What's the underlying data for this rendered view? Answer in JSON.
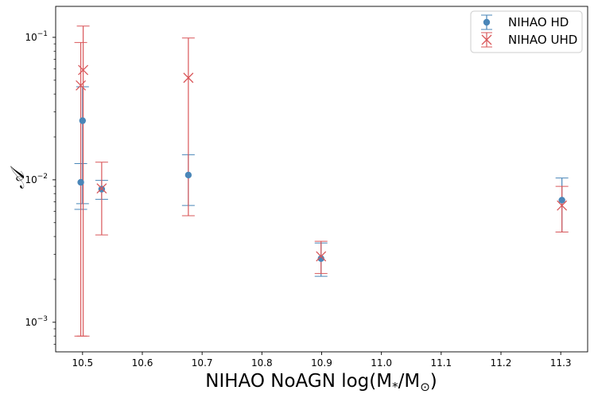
{
  "chart_data": {
    "type": "scatter",
    "title": "",
    "xlabel": "NIHAO NoAGN log(M",
    "xlabel_sub": "*",
    "xlabel_mid": "/M",
    "xlabel_sub2": "⊙",
    "xlabel_end": ")",
    "ylabel": "𝒜",
    "xlim": [
      10.455,
      11.345
    ],
    "ylim": [
      0.00062,
      0.165
    ],
    "yscale": "log",
    "grid": false,
    "legend_position": "top-right",
    "x_ticks": [
      10.5,
      10.6,
      10.7,
      10.8,
      10.9,
      11.0,
      11.1,
      11.2,
      11.3
    ],
    "x_tick_labels": [
      "10.5",
      "10.6",
      "10.7",
      "10.8",
      "10.9",
      "11.0",
      "11.1",
      "11.2",
      "11.3"
    ],
    "y_ticks": [
      0.001,
      0.01,
      0.1
    ],
    "series": [
      {
        "name": "NIHAO HD",
        "marker": "circle",
        "color": "#4a86b8",
        "points": [
          {
            "x": 10.497,
            "y": 0.0096,
            "ylo": 0.0062,
            "yhi": 0.013
          },
          {
            "x": 10.5,
            "y": 0.026,
            "ylo": 0.0068,
            "yhi": 0.045
          },
          {
            "x": 10.532,
            "y": 0.0086,
            "ylo": 0.0073,
            "yhi": 0.0099
          },
          {
            "x": 10.677,
            "y": 0.0108,
            "ylo": 0.0066,
            "yhi": 0.015
          },
          {
            "x": 10.899,
            "y": 0.0028,
            "ylo": 0.0021,
            "yhi": 0.0036
          },
          {
            "x": 11.302,
            "y": 0.0072,
            "ylo": 0.0043,
            "yhi": 0.0103
          }
        ]
      },
      {
        "name": "NIHAO UHD",
        "marker": "x",
        "color": "#d9575a",
        "points": [
          {
            "x": 10.497,
            "y": 0.046,
            "ylo": 0.0008,
            "yhi": 0.092
          },
          {
            "x": 10.501,
            "y": 0.059,
            "ylo": 0.0008,
            "yhi": 0.12
          },
          {
            "x": 10.532,
            "y": 0.0087,
            "ylo": 0.0041,
            "yhi": 0.0133
          },
          {
            "x": 10.677,
            "y": 0.052,
            "ylo": 0.0056,
            "yhi": 0.099
          },
          {
            "x": 10.899,
            "y": 0.0029,
            "ylo": 0.0022,
            "yhi": 0.0037
          },
          {
            "x": 11.302,
            "y": 0.0066,
            "ylo": 0.0043,
            "yhi": 0.009
          }
        ]
      }
    ]
  }
}
